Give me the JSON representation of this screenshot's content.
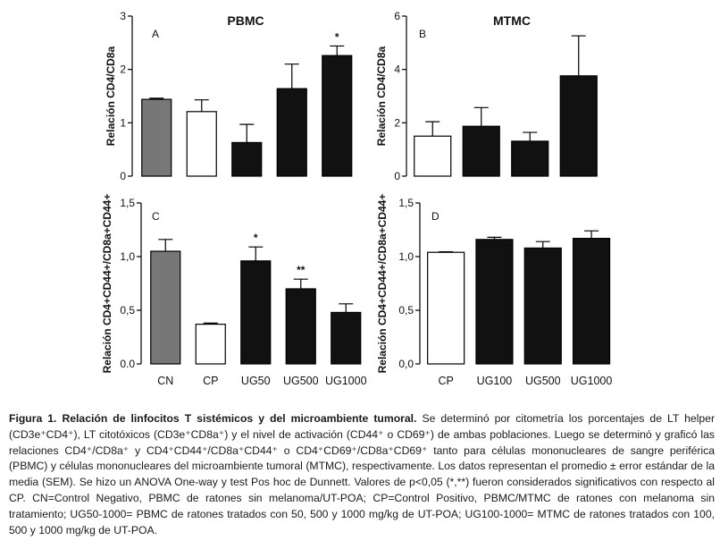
{
  "chart_data": [
    {
      "id": "A",
      "panel_letter": "A",
      "type": "bar",
      "title": "PBMC",
      "ylabel": "Relación CD4/CD8a",
      "xlabel": "",
      "ylim": [
        0,
        3
      ],
      "yticks": [
        "0",
        "1",
        "2",
        "3"
      ],
      "ytick_values": [
        0,
        1,
        2,
        3
      ],
      "categories": [
        "CN",
        "CP",
        "UG50",
        "UG500",
        "UG1000"
      ],
      "category_labels_shown": false,
      "values": [
        1.44,
        1.21,
        0.63,
        1.64,
        2.26
      ],
      "errors": [
        0.02,
        0.22,
        0.34,
        0.46,
        0.18
      ],
      "significance": [
        "",
        "",
        "",
        "",
        "*"
      ],
      "bar_colors": [
        "#777777",
        "#ffffff",
        "#111111",
        "#111111",
        "#111111"
      ]
    },
    {
      "id": "B",
      "panel_letter": "B",
      "type": "bar",
      "title": "MTMC",
      "ylabel": "Relación CD4/CD8a",
      "xlabel": "",
      "ylim": [
        0,
        6
      ],
      "yticks": [
        "0",
        "2",
        "4",
        "6"
      ],
      "ytick_values": [
        0,
        2,
        4,
        6
      ],
      "categories": [
        "CP",
        "UG100",
        "UG500",
        "UG1000"
      ],
      "category_labels_shown": false,
      "values": [
        1.5,
        1.87,
        1.31,
        3.76
      ],
      "errors": [
        0.54,
        0.7,
        0.33,
        1.5
      ],
      "significance": [
        "",
        "",
        "",
        ""
      ],
      "bar_colors": [
        "#ffffff",
        "#111111",
        "#111111",
        "#111111"
      ]
    },
    {
      "id": "C",
      "panel_letter": "C",
      "type": "bar",
      "title": "",
      "ylabel": "Relación CD4+CD44+/CD8a+CD44+",
      "xlabel": "",
      "ylim": [
        0,
        1.5
      ],
      "yticks": [
        "0.0",
        "0,5",
        "1,0",
        "1,5"
      ],
      "ytick_values": [
        0,
        0.5,
        1.0,
        1.5
      ],
      "categories": [
        "CN",
        "CP",
        "UG50",
        "UG500",
        "UG1000"
      ],
      "category_labels_shown": true,
      "values": [
        1.05,
        0.37,
        0.96,
        0.7,
        0.48
      ],
      "errors": [
        0.11,
        0.01,
        0.13,
        0.09,
        0.08
      ],
      "significance": [
        "",
        "",
        "*",
        "**",
        ""
      ],
      "bar_colors": [
        "#777777",
        "#ffffff",
        "#111111",
        "#111111",
        "#111111"
      ]
    },
    {
      "id": "D",
      "panel_letter": "D",
      "type": "bar",
      "title": "",
      "ylabel": "Relación CD4+CD44+/CD8a+CD44+",
      "xlabel": "",
      "ylim": [
        0,
        1.5
      ],
      "yticks": [
        "0,0",
        "0,5",
        "1,0",
        "1,5"
      ],
      "ytick_values": [
        0,
        0.5,
        1.0,
        1.5
      ],
      "categories": [
        "CP",
        "UG100",
        "UG500",
        "UG1000"
      ],
      "category_labels_shown": true,
      "values": [
        1.04,
        1.16,
        1.08,
        1.17
      ],
      "errors": [
        0.005,
        0.02,
        0.06,
        0.07
      ],
      "significance": [
        "",
        "",
        "",
        ""
      ],
      "bar_colors": [
        "#ffffff",
        "#111111",
        "#111111",
        "#111111"
      ]
    }
  ],
  "caption": {
    "label": "Figura 1.",
    "title": " Relación de linfocitos T sistémicos y del microambiente tumoral.",
    "body": " Se determinó por citometría los porcentajes de LT helper (CD3e⁺CD4⁺), LT citotóxicos (CD3e⁺CD8a⁺) y el nivel de activación (CD44⁺ o CD69⁺) de ambas poblaciones. Luego se determinó y graficó las relaciones CD4⁺/CD8a⁺ y CD4⁺CD44⁺/CD8a⁺CD44⁺ o CD4⁺CD69⁺/CD8a⁺CD69⁺ tanto para células mononucleares de sangre periférica (PBMC) y células mononucleares del microambiente tumoral (MTMC), respectivamente. Los datos representan el promedio ± error estándar de la media (SEM). Se hizo un ANOVA One-way y test Pos hoc de Dunnett. Valores de p<0,05 (*,**) fueron considerados significativos con respecto al CP. CN=Control Negativo, PBMC de ratones sin melanoma/UT-POA; CP=Control Positivo, PBMC/MTMC de ratones con melanoma sin tratamiento; UG50-1000= PBMC de ratones tratados con 50, 500 y 1000 mg/kg de UT-POA; UG100-1000= MTMC de ratones tratados con 100, 500 y 1000 mg/kg de UT-POA."
  }
}
